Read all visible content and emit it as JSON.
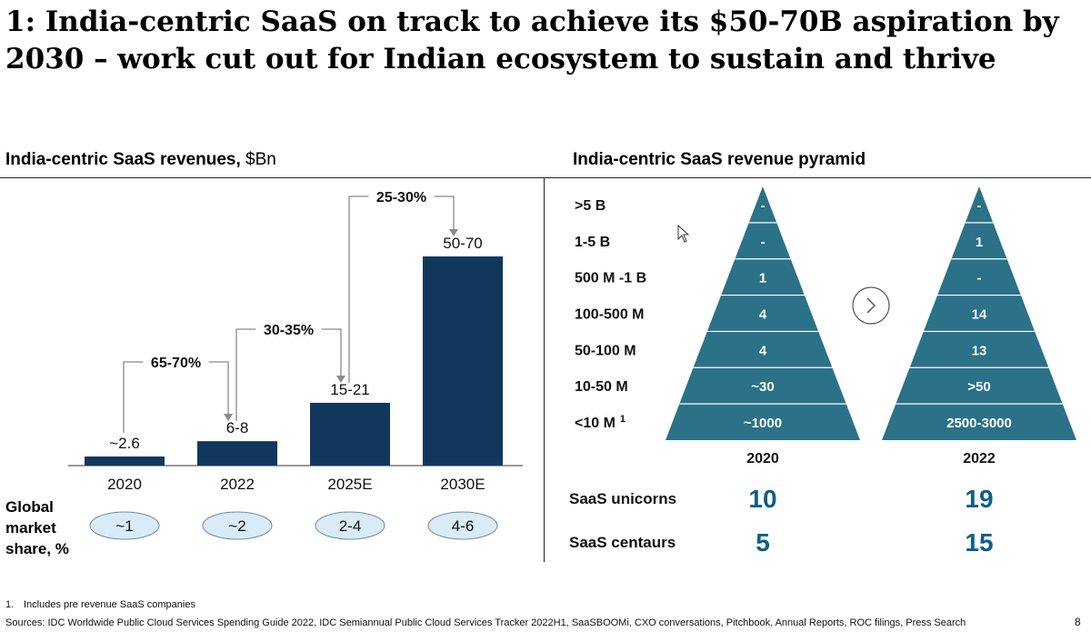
{
  "title": "1: India-centric SaaS on track to achieve its $50-70B aspiration by 2030 – work cut out for Indian ecosystem to sustain and thrive",
  "left_chart": {
    "heading": "India-centric SaaS revenues,",
    "heading_unit": "$Bn",
    "market_share_label": "Global market share, %"
  },
  "right_chart": {
    "heading": "India-centric SaaS revenue pyramid",
    "next_icon": "chevron-right-icon"
  },
  "chart_data": [
    {
      "type": "bar",
      "title": "India-centric SaaS revenues, $Bn",
      "categories": [
        "2020",
        "2022",
        "2025E",
        "2030E"
      ],
      "values": [
        2.6,
        7,
        18,
        60
      ],
      "value_labels": [
        "~2.6",
        "6-8",
        "15-21",
        "50-70"
      ],
      "ylim": [
        0,
        70
      ],
      "growth_annotations": [
        {
          "from": "2020",
          "to": "2022",
          "label": "65-70%"
        },
        {
          "from": "2022",
          "to": "2025E",
          "label": "30-35%"
        },
        {
          "from": "2025E",
          "to": "2030E",
          "label": "25-30%"
        }
      ],
      "global_market_share": [
        "~1",
        "~2",
        "2-4",
        "4-6"
      ],
      "bar_color": "#12375c"
    },
    {
      "type": "table",
      "title": "India-centric SaaS revenue pyramid",
      "tiers": [
        ">5 B",
        "1-5 B",
        "500 M -1 B",
        "100-500 M",
        "50-100 M",
        "10-50 M",
        "<10 M"
      ],
      "tier_footnote_marker": "1",
      "series": [
        {
          "name": "2020",
          "values": [
            "-",
            "-",
            "1",
            "4",
            "4",
            "~30",
            "~1000"
          ]
        },
        {
          "name": "2022",
          "values": [
            "-",
            "1",
            "-",
            "14",
            "13",
            ">50",
            "2500-3000"
          ]
        }
      ],
      "pyramid_color": "#2b7188",
      "metrics": [
        {
          "label": "SaaS unicorns",
          "values": [
            "10",
            "19"
          ]
        },
        {
          "label": "SaaS centaurs",
          "values": [
            "5",
            "15"
          ]
        }
      ]
    }
  ],
  "footnote": {
    "number": "1.",
    "text": "Includes pre revenue SaaS companies"
  },
  "sources": "Sources: IDC Worldwide Public Cloud Services Spending Guide 2022, IDC Semiannual Public Cloud Services Tracker 2022H1, SaaSBOOMi, CXO conversations, Pitchbook, Annual Reports, ROC filings, Press Search",
  "page_number": "8",
  "colors": {
    "bar": "#12375c",
    "pyramid": "#2b7188",
    "metric": "#0f5f86",
    "oval": "#d9ebf6"
  }
}
